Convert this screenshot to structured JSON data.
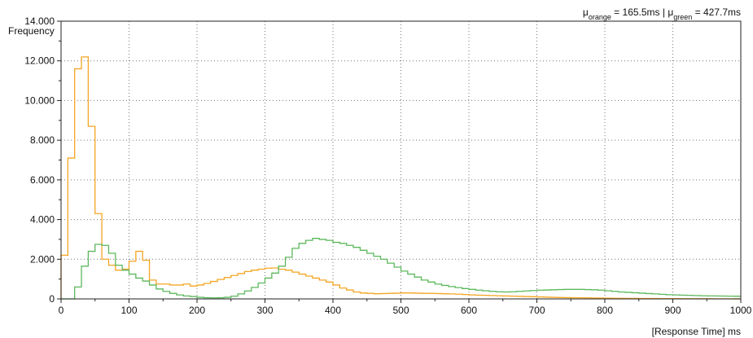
{
  "chart_data": {
    "type": "histogram",
    "ylabel": "Frequency",
    "xlabel": "[Response Time] ms",
    "annotation": {
      "mu": "μ",
      "orange_sub": "orange",
      "orange_value": " = 165.5ms | ",
      "green_sub": "green",
      "green_value": " = 427.7ms"
    },
    "xlim": [
      0,
      1000
    ],
    "ylim": [
      0,
      14000
    ],
    "bin_width": 10,
    "grid": true,
    "x_ticks": [
      {
        "value": 0,
        "label": "0"
      },
      {
        "value": 100,
        "label": "100"
      },
      {
        "value": 200,
        "label": "200"
      },
      {
        "value": 300,
        "label": "300"
      },
      {
        "value": 400,
        "label": "400"
      },
      {
        "value": 500,
        "label": "500"
      },
      {
        "value": 600,
        "label": "600"
      },
      {
        "value": 700,
        "label": "700"
      },
      {
        "value": 800,
        "label": "800"
      },
      {
        "value": 900,
        "label": "900"
      },
      {
        "value": 1000,
        "label": "1000"
      }
    ],
    "y_ticks": [
      {
        "value": 0,
        "label": "0"
      },
      {
        "value": 2000,
        "label": "2.000"
      },
      {
        "value": 4000,
        "label": "4.000"
      },
      {
        "value": 6000,
        "label": "6.000"
      },
      {
        "value": 8000,
        "label": "8.000"
      },
      {
        "value": 10000,
        "label": "10.000"
      },
      {
        "value": 12000,
        "label": "12.000"
      },
      {
        "value": 14000,
        "label": "14.000"
      }
    ],
    "series": [
      {
        "color": "#f5a623",
        "bins_start": 0,
        "values": [
          2200,
          7100,
          11600,
          12200,
          8700,
          4300,
          2000,
          1700,
          1450,
          1500,
          1900,
          2400,
          1950,
          950,
          750,
          750,
          700,
          700,
          750,
          650,
          700,
          780,
          880,
          980,
          1080,
          1180,
          1280,
          1380,
          1450,
          1500,
          1550,
          1560,
          1500,
          1450,
          1350,
          1250,
          1150,
          1050,
          950,
          850,
          700,
          550,
          450,
          350,
          300,
          280,
          260,
          270,
          280,
          290,
          300,
          300,
          290,
          280,
          280,
          270,
          260,
          250,
          240,
          220,
          200,
          190,
          180,
          170,
          160,
          150,
          140,
          130,
          120,
          110,
          100,
          90,
          80,
          70,
          65,
          60,
          55,
          50,
          45,
          40,
          35,
          30,
          28,
          26,
          24,
          22,
          20,
          18,
          16,
          14,
          12,
          11,
          10,
          9,
          8,
          7,
          6,
          5,
          4,
          3
        ]
      },
      {
        "color": "#5cb85c",
        "bins_start": 0,
        "values": [
          0,
          0,
          600,
          1650,
          2400,
          2750,
          2700,
          2300,
          1700,
          1450,
          1250,
          1050,
          900,
          700,
          500,
          380,
          280,
          200,
          150,
          120,
          80,
          60,
          50,
          60,
          80,
          140,
          250,
          400,
          580,
          800,
          1050,
          1300,
          1650,
          2100,
          2550,
          2800,
          2950,
          3050,
          3000,
          2950,
          2850,
          2800,
          2700,
          2600,
          2450,
          2300,
          2150,
          2000,
          1800,
          1600,
          1400,
          1250,
          1100,
          950,
          850,
          750,
          680,
          620,
          570,
          520,
          480,
          440,
          410,
          380,
          360,
          350,
          360,
          380,
          400,
          420,
          440,
          450,
          460,
          470,
          480,
          480,
          480,
          470,
          460,
          440,
          410,
          380,
          350,
          330,
          310,
          290,
          270,
          250,
          230,
          210,
          200,
          190,
          180,
          170,
          160,
          155,
          150,
          145,
          140,
          135
        ]
      }
    ]
  }
}
